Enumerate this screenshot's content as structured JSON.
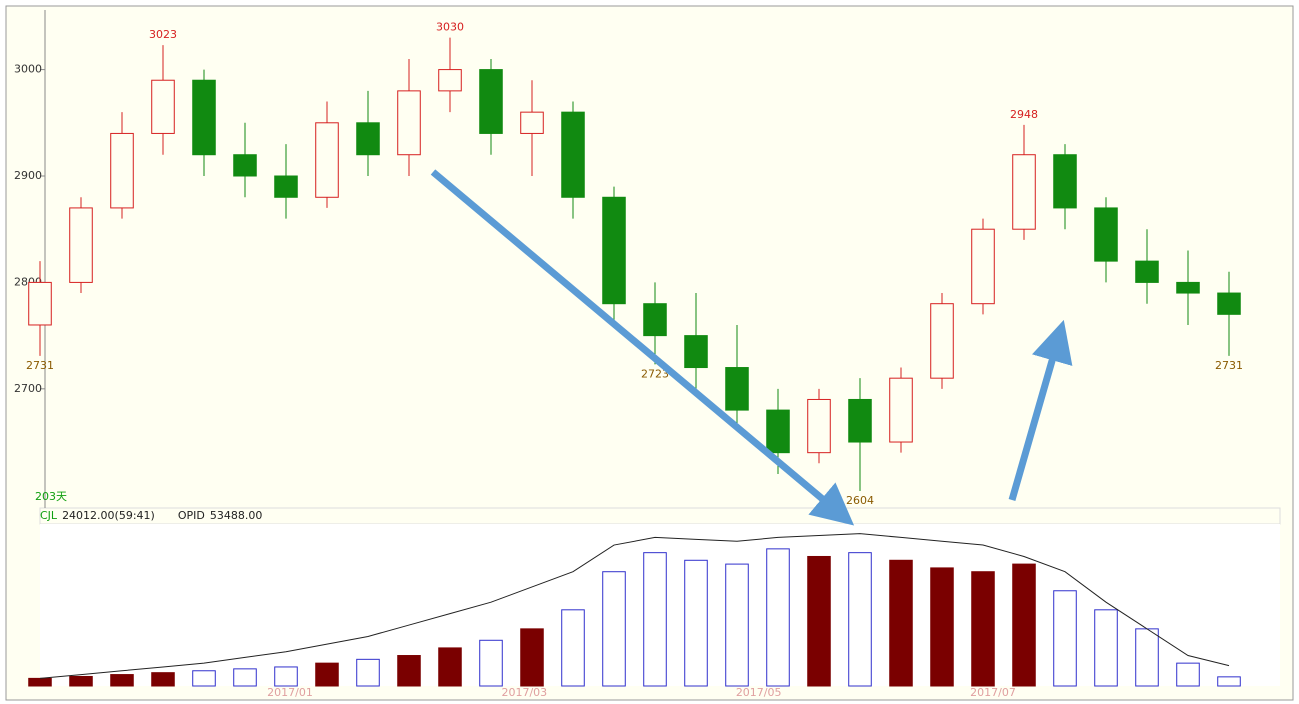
{
  "chart_data": {
    "type": "candlestick",
    "open": [
      2760,
      2800,
      2870,
      2940,
      2990,
      2920,
      2900,
      2880,
      2950,
      2920,
      2980,
      3000,
      2940,
      2960,
      2880,
      2780,
      2750,
      2720,
      2680,
      2640,
      2690,
      2650,
      2710,
      2780,
      2850,
      2920,
      2870,
      2820,
      2800,
      2790
    ],
    "high": [
      2820,
      2880,
      2960,
      3023,
      3000,
      2950,
      2930,
      2970,
      2980,
      3010,
      3030,
      3010,
      2990,
      2970,
      2890,
      2800,
      2790,
      2760,
      2700,
      2700,
      2710,
      2720,
      2790,
      2860,
      2948,
      2930,
      2880,
      2850,
      2830,
      2810
    ],
    "low": [
      2731,
      2790,
      2860,
      2920,
      2900,
      2880,
      2860,
      2870,
      2900,
      2900,
      2960,
      2920,
      2900,
      2860,
      2760,
      2723,
      2700,
      2660,
      2620,
      2630,
      2604,
      2640,
      2700,
      2770,
      2840,
      2850,
      2800,
      2780,
      2760,
      2731
    ],
    "close": [
      2800,
      2870,
      2940,
      2990,
      2920,
      2900,
      2880,
      2950,
      2920,
      2980,
      3000,
      2940,
      2960,
      2880,
      2780,
      2750,
      2720,
      2680,
      2640,
      2690,
      2650,
      2710,
      2780,
      2850,
      2920,
      2870,
      2820,
      2800,
      2790,
      2770
    ],
    "volume": [
      20000,
      25000,
      30000,
      35000,
      40000,
      45000,
      50000,
      60000,
      70000,
      80000,
      100000,
      120000,
      150000,
      200000,
      300000,
      350000,
      330000,
      320000,
      360000,
      340000,
      350000,
      330000,
      310000,
      300000,
      320000,
      250000,
      200000,
      150000,
      60000,
      24012
    ],
    "open_interest": [
      20000,
      30000,
      40000,
      50000,
      60000,
      75000,
      90000,
      110000,
      130000,
      160000,
      190000,
      220000,
      260000,
      300000,
      370000,
      390000,
      385000,
      380000,
      390000,
      395000,
      400000,
      390000,
      380000,
      370000,
      340000,
      300000,
      220000,
      150000,
      80000,
      53488
    ],
    "ylim": [
      2588,
      3056
    ],
    "yticks": [
      2700,
      2800,
      2900,
      3000
    ],
    "vol_ylim": [
      0,
      420000
    ],
    "annotations": [
      3023,
      3030,
      2948,
      2723,
      2604,
      2731
    ],
    "x_labels": [
      "2017/01",
      "2017/03",
      "2017/05",
      "2017/07"
    ],
    "period": "203天",
    "indicators": [
      {
        "label": "CJL",
        "value": "24012.00(59:41)"
      },
      {
        "label": "OPID",
        "value": "53488.00"
      }
    ],
    "up_color": "#d62020",
    "down_color": "#118a11",
    "vol_up_color": "#7a0000",
    "vol_down_color": "#3030cc",
    "oi_color": "#222222"
  }
}
